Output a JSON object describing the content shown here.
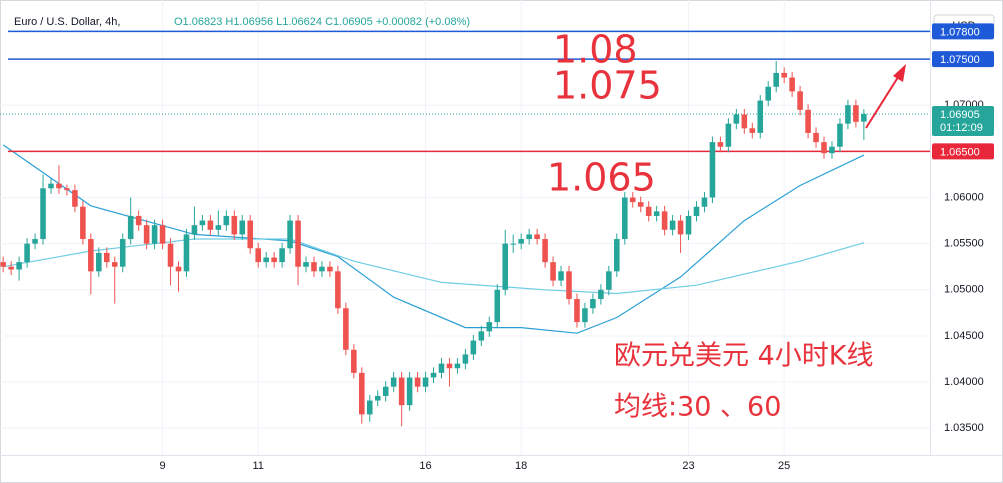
{
  "chart_data": {
    "type": "candlestick",
    "symbol": "Euro / U.S. Dollar, 4h,",
    "ohlc_text": "O1.06823 H1.06956 L1.06624 C1.06905 +0.00082 (+0.08%)",
    "currency": "USD",
    "up_color": "#26a69a",
    "down_color": "#ef5350",
    "open": [
      1.053,
      1.0525,
      1.0522,
      1.053,
      1.055,
      1.0555,
      1.061,
      1.0615,
      1.061,
      1.0608,
      1.059,
      1.0555,
      1.052,
      1.054,
      1.053,
      1.0525,
      1.0555,
      1.058,
      1.057,
      1.055,
      1.057,
      1.055,
      1.0525,
      1.052,
      1.056,
      1.057,
      1.0575,
      1.0565,
      1.057,
      1.058,
      1.056,
      1.0575,
      1.0545,
      1.053,
      1.0535,
      1.053,
      1.0545,
      1.0575,
      1.0525,
      1.053,
      1.052,
      1.0525,
      1.052,
      1.048,
      1.0435,
      1.041,
      1.0365,
      1.038,
      1.0385,
      1.0395,
      1.0405,
      1.0375,
      1.0405,
      1.0395,
      1.0405,
      1.041,
      1.042,
      1.0415,
      1.042,
      1.043,
      1.0445,
      1.0455,
      1.0465,
      1.05,
      1.055,
      1.055,
      1.0555,
      1.056,
      1.0555,
      1.053,
      1.051,
      1.052,
      1.049,
      1.0465,
      1.048,
      1.049,
      1.05,
      1.052,
      1.0555,
      1.06,
      1.0595,
      1.059,
      1.058,
      1.0585,
      1.0565,
      1.0575,
      1.056,
      1.058,
      1.059,
      1.06,
      1.066,
      1.0655,
      1.068,
      1.069,
      1.0675,
      1.067,
      1.0705,
      1.072,
      1.0735,
      1.073,
      1.0715,
      1.0695,
      1.067,
      1.066,
      1.0648,
      1.0655,
      1.068,
      1.07,
      1.06823
    ],
    "high": [
      1.0536,
      1.0531,
      1.0536,
      1.0556,
      1.0561,
      1.0625,
      1.0621,
      1.0635,
      1.0614,
      1.0614,
      1.0596,
      1.0561,
      1.0546,
      1.0546,
      1.0536,
      1.0561,
      1.06,
      1.0586,
      1.0576,
      1.0576,
      1.0576,
      1.0556,
      1.0531,
      1.0566,
      1.059,
      1.0581,
      1.0581,
      1.0586,
      1.0586,
      1.0586,
      1.0581,
      1.0581,
      1.0551,
      1.0541,
      1.0541,
      1.0551,
      1.0581,
      1.0581,
      1.0536,
      1.0536,
      1.0531,
      1.0531,
      1.0526,
      1.0486,
      1.0441,
      1.0416,
      1.0386,
      1.0391,
      1.0401,
      1.0411,
      1.0411,
      1.0411,
      1.0411,
      1.0411,
      1.0416,
      1.0426,
      1.0426,
      1.0426,
      1.0436,
      1.0451,
      1.0461,
      1.0471,
      1.0506,
      1.0565,
      1.056,
      1.0561,
      1.0566,
      1.0566,
      1.0561,
      1.0536,
      1.0526,
      1.0526,
      1.0496,
      1.0486,
      1.0496,
      1.0506,
      1.0526,
      1.0561,
      1.0606,
      1.0606,
      1.0601,
      1.0596,
      1.0591,
      1.0591,
      1.0581,
      1.0581,
      1.0586,
      1.0596,
      1.0606,
      1.0666,
      1.0666,
      1.0686,
      1.0696,
      1.0696,
      1.0681,
      1.0711,
      1.0726,
      1.0748,
      1.0741,
      1.0736,
      1.0721,
      1.0701,
      1.0676,
      1.0666,
      1.0661,
      1.0686,
      1.0706,
      1.0706,
      1.06956
    ],
    "low": [
      1.0519,
      1.0516,
      1.051,
      1.0524,
      1.0544,
      1.0549,
      1.0604,
      1.0604,
      1.0602,
      1.0584,
      1.0549,
      1.0495,
      1.0514,
      1.0524,
      1.0485,
      1.0519,
      1.0549,
      1.0564,
      1.0544,
      1.0544,
      1.0544,
      1.0505,
      1.0498,
      1.0514,
      1.0554,
      1.0564,
      1.0559,
      1.0559,
      1.0564,
      1.0554,
      1.0554,
      1.0539,
      1.0524,
      1.0524,
      1.0524,
      1.0524,
      1.0539,
      1.0505,
      1.0519,
      1.0514,
      1.0514,
      1.0514,
      1.0474,
      1.0429,
      1.0404,
      1.0355,
      1.0357,
      1.0374,
      1.0379,
      1.0389,
      1.0352,
      1.0369,
      1.0389,
      1.0389,
      1.0399,
      1.0404,
      1.0395,
      1.0409,
      1.0414,
      1.0424,
      1.0439,
      1.0449,
      1.0459,
      1.0494,
      1.054,
      1.0544,
      1.0549,
      1.0549,
      1.0524,
      1.0504,
      1.0504,
      1.0484,
      1.0459,
      1.0459,
      1.0474,
      1.0484,
      1.0494,
      1.0514,
      1.0549,
      1.0589,
      1.0584,
      1.0574,
      1.0574,
      1.0559,
      1.0559,
      1.054,
      1.0554,
      1.0574,
      1.0584,
      1.0594,
      1.0649,
      1.0649,
      1.0674,
      1.0669,
      1.0664,
      1.0664,
      1.0699,
      1.0714,
      1.0724,
      1.0709,
      1.0689,
      1.0664,
      1.0654,
      1.0642,
      1.0642,
      1.0649,
      1.0674,
      1.0676,
      1.06624
    ],
    "close": [
      1.0525,
      1.0522,
      1.053,
      1.055,
      1.0555,
      1.061,
      1.0615,
      1.061,
      1.0608,
      1.059,
      1.0555,
      1.052,
      1.054,
      1.053,
      1.0525,
      1.0555,
      1.058,
      1.057,
      1.055,
      1.057,
      1.055,
      1.0525,
      1.052,
      1.056,
      1.057,
      1.0575,
      1.0565,
      1.057,
      1.058,
      1.056,
      1.0575,
      1.0545,
      1.053,
      1.0535,
      1.053,
      1.0545,
      1.0575,
      1.0525,
      1.053,
      1.052,
      1.0525,
      1.052,
      1.048,
      1.0435,
      1.041,
      1.0365,
      1.038,
      1.0385,
      1.0395,
      1.0405,
      1.0375,
      1.0405,
      1.0395,
      1.0405,
      1.041,
      1.042,
      1.0415,
      1.042,
      1.043,
      1.0445,
      1.0455,
      1.0465,
      1.05,
      1.055,
      1.055,
      1.0555,
      1.056,
      1.0555,
      1.053,
      1.051,
      1.052,
      1.049,
      1.0465,
      1.048,
      1.049,
      1.05,
      1.052,
      1.0555,
      1.06,
      1.0595,
      1.059,
      1.058,
      1.0585,
      1.0565,
      1.0575,
      1.056,
      1.058,
      1.059,
      1.06,
      1.066,
      1.0655,
      1.068,
      1.069,
      1.0675,
      1.067,
      1.0705,
      1.072,
      1.0735,
      1.073,
      1.0715,
      1.0695,
      1.067,
      1.066,
      1.0648,
      1.0655,
      1.068,
      1.07,
      1.0682,
      1.06905
    ],
    "moving_averages": [
      {
        "color": "#2a9fd6",
        "x": [
          0,
          11,
          24,
          36,
          42,
          49,
          58,
          65,
          72,
          77,
          85,
          93,
          100,
          108
        ],
        "values": [
          1.0657,
          1.0591,
          1.056,
          1.0553,
          1.0536,
          1.0492,
          1.0459,
          1.0459,
          1.0453,
          1.047,
          1.0514,
          1.0575,
          1.0613,
          1.0646
        ]
      },
      {
        "color": "#6fcde3",
        "x": [
          0,
          11,
          24,
          36,
          44,
          55,
          68,
          77,
          87,
          100,
          108
        ],
        "values": [
          1.0525,
          1.0542,
          1.0555,
          1.0555,
          1.0531,
          1.0508,
          1.05,
          1.0496,
          1.0505,
          1.0531,
          1.0551
        ]
      }
    ],
    "xlim": [
      -0.4,
      116.3
    ],
    "xticks": [
      {
        "value": 20,
        "label": "9"
      },
      {
        "value": 32,
        "label": "11"
      },
      {
        "value": 53,
        "label": "16"
      },
      {
        "value": 65,
        "label": "18"
      },
      {
        "value": 86,
        "label": "23"
      },
      {
        "value": 98,
        "label": "25"
      }
    ],
    "ylim": [
      1.0321,
      1.0814
    ],
    "yticks": [
      {
        "value": 1.035,
        "label": "1.03500"
      },
      {
        "value": 1.04,
        "label": "1.04000"
      },
      {
        "value": 1.045,
        "label": "1.04500"
      },
      {
        "value": 1.05,
        "label": "1.05000"
      },
      {
        "value": 1.055,
        "label": "1.05500"
      },
      {
        "value": 1.06,
        "label": "1.06000"
      },
      {
        "value": 1.07,
        "label": "1.07000"
      }
    ],
    "levels": [
      {
        "value": 1.078,
        "label": "1.07800",
        "color": "#1e5ad8"
      },
      {
        "value": 1.075,
        "label": "1.07500",
        "color": "#1e5ad8"
      },
      {
        "value": 1.065,
        "label": "1.06500",
        "color": "#e8283a"
      }
    ],
    "last_price": {
      "value": 1.06905,
      "label": "1.06905",
      "countdown": "01:12:09"
    },
    "annotations": [
      "1.08",
      "1.075",
      "1.065",
      "欧元兑美元 4小时K线",
      "均线:30 、60"
    ]
  }
}
